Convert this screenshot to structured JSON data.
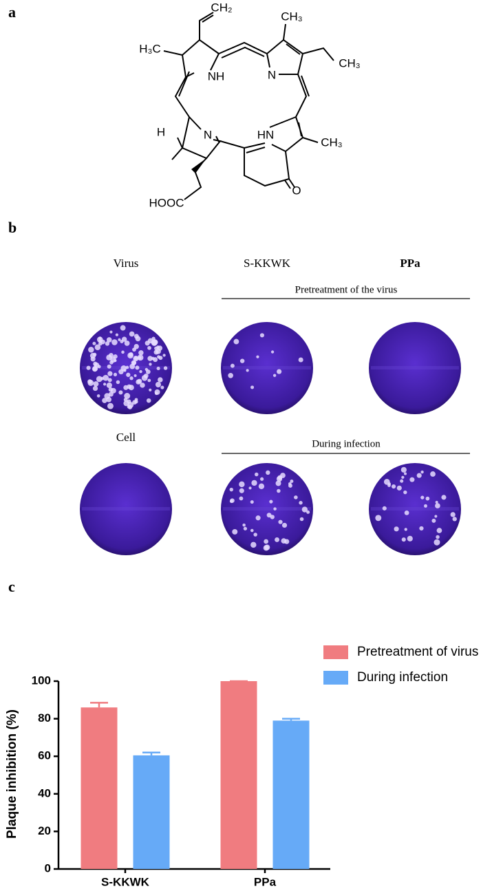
{
  "panels": [
    "a",
    "b",
    "c"
  ],
  "structure": {
    "atoms": [
      "CH₂",
      "CH₃",
      "H₃C",
      "CH₃",
      "NH",
      "N",
      "N",
      "HN",
      "H",
      "CH₃",
      "HOOC",
      "O"
    ]
  },
  "plaques": {
    "columns": [
      "Virus",
      "S-KKWK",
      "PPa"
    ],
    "row_labels": [
      "Cell"
    ],
    "group_labels": [
      "Pretreatment of the virus",
      "During infection"
    ]
  },
  "chart_data": {
    "type": "bar",
    "y_label": "Plaque inhibition (%)",
    "categories": [
      "S-KKWK",
      "PPa"
    ],
    "series": [
      {
        "name": "Pretreatment of virus",
        "color": "#f07c80",
        "values": [
          86,
          100
        ],
        "errors": [
          2.5,
          0
        ]
      },
      {
        "name": "During infection",
        "color": "#66aaf7",
        "values": [
          60.5,
          79
        ],
        "errors": [
          1.5,
          1
        ]
      }
    ],
    "ylim": [
      0,
      100
    ],
    "yticks": [
      0,
      20,
      40,
      60,
      80,
      100
    ],
    "legend": "top-right"
  }
}
